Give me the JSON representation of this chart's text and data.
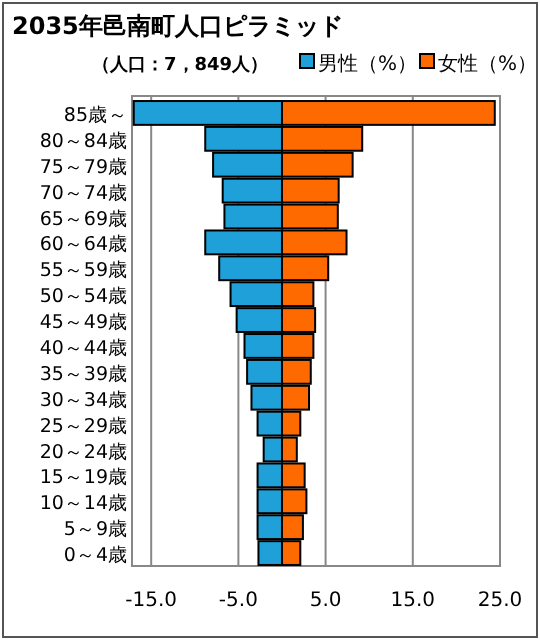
{
  "chart_data": {
    "type": "bar",
    "orientation": "horizontal",
    "stacked": true,
    "title": "2035年邑南町人口ピラミッド",
    "subtitle": "（人口：7，849人）",
    "categories": [
      "85歳～",
      "80～84歳",
      "75～79歳",
      "70～74歳",
      "65～69歳",
      "60～64歳",
      "55～59歳",
      "50～54歳",
      "45～49歳",
      "40～44歳",
      "35～39歳",
      "30～34歳",
      "25～29歳",
      "20～24歳",
      "15～19歳",
      "10～14歳",
      "5～9歳",
      "0～4歳"
    ],
    "series": [
      {
        "name": "男性（%）",
        "color": "#1fa0d8",
        "values": [
          -17.0,
          -8.8,
          -7.9,
          -6.8,
          -6.6,
          -8.8,
          -7.2,
          -5.9,
          -5.2,
          -4.3,
          -4.0,
          -3.5,
          -2.8,
          -2.1,
          -2.8,
          -2.8,
          -2.8,
          -2.7
        ]
      },
      {
        "name": "女性（%）",
        "color": "#ff6a00",
        "values": [
          24.4,
          9.2,
          8.1,
          6.5,
          6.4,
          7.4,
          5.3,
          3.6,
          3.8,
          3.6,
          3.3,
          3.1,
          2.1,
          1.7,
          2.6,
          2.8,
          2.4,
          2.1
        ]
      }
    ],
    "xlim": [
      -17.2,
      25
    ],
    "xticks": [
      {
        "value": -15,
        "label": "-15.0"
      },
      {
        "value": -5,
        "label": "-5.0"
      },
      {
        "value": 5,
        "label": "5.0"
      },
      {
        "value": 15,
        "label": "15.0"
      },
      {
        "value": 25,
        "label": "25.0"
      }
    ],
    "grid": "x",
    "legend": "top right"
  }
}
